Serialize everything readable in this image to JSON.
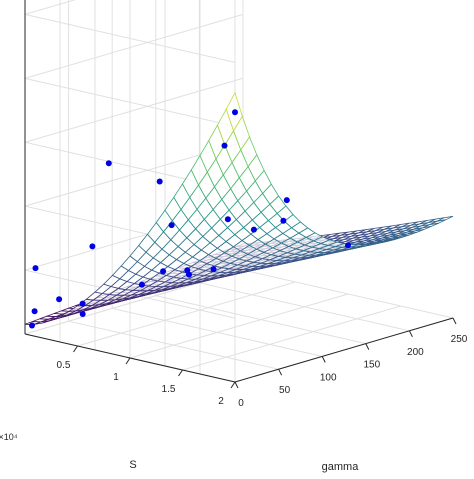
{
  "chart_data": {
    "type": "surface3d",
    "title": "",
    "xlabel": "gamma",
    "ylabel": "S",
    "zlabel": "",
    "y_exponent_label": "×10⁴",
    "x_ticks": [
      "0",
      "50",
      "100",
      "150",
      "200",
      "250"
    ],
    "y_ticks": [
      "0.5",
      "1",
      "1.5",
      "2"
    ],
    "xlim": [
      0,
      250
    ],
    "ylim": [
      0,
      2.0
    ],
    "grid": true,
    "colormap": "viridis",
    "colors": {
      "points": "#0000e6",
      "grid": "#e0e0e0",
      "axis": "#262626",
      "background": "#ffffff"
    },
    "surface_function": "z grows with S and falls with gamma (exponential saddle)",
    "points": [
      {
        "gamma": 0,
        "S": 2.0,
        "z": 0.83
      },
      {
        "gamma": 0,
        "S": 1.9,
        "z": 0.72
      },
      {
        "gamma": 10,
        "S": 1.2,
        "z": 0.55
      },
      {
        "gamma": 60,
        "S": 0.3,
        "z": 0.5
      },
      {
        "gamma": 40,
        "S": 1.6,
        "z": 0.44
      },
      {
        "gamma": 130,
        "S": 1.1,
        "z": 0.3
      },
      {
        "gamma": 5,
        "S": 0.6,
        "z": 0.31
      },
      {
        "gamma": 50,
        "S": 0.9,
        "z": 0.22
      },
      {
        "gamma": 120,
        "S": 0.4,
        "z": 0.27
      },
      {
        "gamma": 200,
        "S": 0.8,
        "z": 0.25
      },
      {
        "gamma": 250,
        "S": 1.0,
        "z": 0.15
      },
      {
        "gamma": 240,
        "S": 0.5,
        "z": 0.26
      },
      {
        "gamma": 0,
        "S": 0.1,
        "z": 0.21
      },
      {
        "gamma": 15,
        "S": 0.2,
        "z": 0.11
      },
      {
        "gamma": 30,
        "S": 0.3,
        "z": 0.06
      },
      {
        "gamma": 110,
        "S": 0.2,
        "z": 0.08
      },
      {
        "gamma": 150,
        "S": 0.3,
        "z": 0.1
      },
      {
        "gamma": 180,
        "S": 0.3,
        "z": 0.08
      },
      {
        "gamma": 5,
        "S": 0.05,
        "z": 0.07
      },
      {
        "gamma": 8,
        "S": 0.0,
        "z": 0.02
      },
      {
        "gamma": 60,
        "S": 0.05,
        "z": 0.05
      },
      {
        "gamma": 170,
        "S": 0.15,
        "z": 0.06
      }
    ]
  }
}
